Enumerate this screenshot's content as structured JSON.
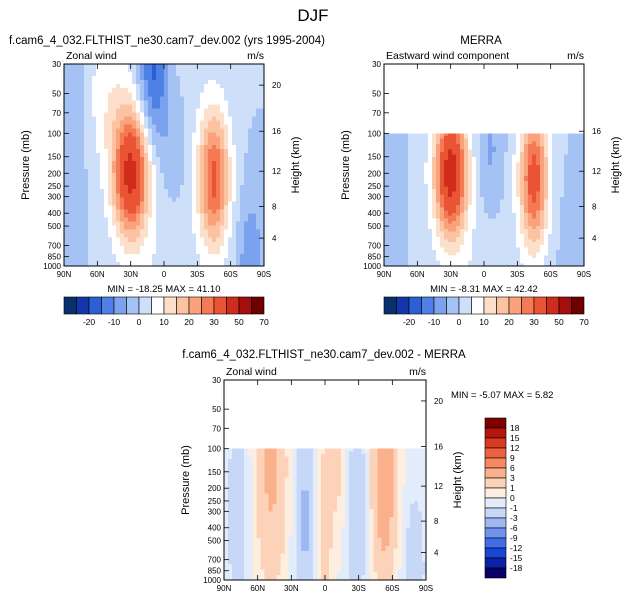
{
  "page": {
    "title": "DJF",
    "top_left_title": "f.cam6_4_032.FLTHIST_ne30.cam7_dev.002 (yrs 1995-2004)",
    "top_right_title": "MERRA",
    "bottom_title": "f.cam6_4_032.FLTHIST_ne30.cam7_dev.002 - MERRA"
  },
  "colors": {
    "full_scale": [
      "#08306b",
      "#1337a8",
      "#2b5fd6",
      "#4f80e6",
      "#7aa2ee",
      "#a4c2f4",
      "#cddff9",
      "#ffffff",
      "#fde0cc",
      "#fcc3a3",
      "#f9a27b",
      "#f47a55",
      "#e85434",
      "#cf2c1c",
      "#a30f0f",
      "#6e0000"
    ],
    "diff_scale": [
      "#08006b",
      "#0b21a8",
      "#1a46d8",
      "#3f6ee6",
      "#6f94ee",
      "#9db8f4",
      "#c6d7f8",
      "#e3ecfb",
      "#fdeee0",
      "#fcd3b8",
      "#f9b08b",
      "#f48962",
      "#ec6140",
      "#d8391f",
      "#b4150f",
      "#800000"
    ]
  },
  "chart_data": [
    {
      "name": "model",
      "type": "heatmap",
      "left_label": "Zonal wind",
      "right_label": "m/s",
      "ylabel": "Pressure (mb)",
      "y2label": "Height (km)",
      "x_ticks": [
        "90N",
        "60N",
        "30N",
        "0",
        "30S",
        "60S",
        "90S"
      ],
      "y_ticks": [
        "30",
        "50",
        "70",
        "100",
        "150",
        "200",
        "250",
        "300",
        "400",
        "500",
        "700",
        "850",
        "1000"
      ],
      "y2_ticks": [
        "20",
        "16",
        "12",
        "8",
        "4"
      ],
      "stats": "MIN = -18.25   MAX = 41.10",
      "colorbar_labels": [
        "-20",
        "-10",
        "0",
        "10",
        "20",
        "30",
        "50",
        "70"
      ],
      "jets": [
        {
          "lat": 30,
          "pressure": 200,
          "max": 41.1
        },
        {
          "lat": -45,
          "pressure": 200,
          "max": 30
        }
      ],
      "easterly_min": {
        "lat": 10,
        "pressure": 30,
        "value": -18.25
      }
    },
    {
      "name": "merra",
      "type": "heatmap",
      "left_label": "Eastward wind component",
      "right_label": "m/s",
      "ylabel": "Pressure (mb)",
      "y2label": "Height (km)",
      "x_ticks": [
        "90N",
        "60N",
        "30N",
        "0",
        "30S",
        "60S",
        "90S"
      ],
      "y_ticks": [
        "30",
        "50",
        "70",
        "100",
        "150",
        "200",
        "250",
        "300",
        "400",
        "500",
        "700",
        "850",
        "1000"
      ],
      "y2_ticks": [
        "16",
        "12",
        "8",
        "4"
      ],
      "stats": "MIN = -8.31   MAX = 42.42",
      "colorbar_labels": [
        "-20",
        "-10",
        "0",
        "10",
        "20",
        "30",
        "50",
        "70"
      ],
      "data_top_pressure": 100,
      "jets": [
        {
          "lat": 30,
          "pressure": 200,
          "max": 42.42
        },
        {
          "lat": -45,
          "pressure": 200,
          "max": 32
        }
      ]
    },
    {
      "name": "difference",
      "type": "heatmap",
      "left_label": "Zonal wind",
      "right_label": "m/s",
      "ylabel": "Pressure (mb)",
      "y2label": "Height (km)",
      "x_ticks": [
        "90N",
        "60N",
        "30N",
        "0",
        "30S",
        "60S",
        "90S"
      ],
      "y_ticks": [
        "30",
        "50",
        "70",
        "100",
        "150",
        "200",
        "250",
        "300",
        "400",
        "500",
        "700",
        "850",
        "1000"
      ],
      "y2_ticks": [
        "20",
        "16",
        "12",
        "8",
        "4"
      ],
      "stats": "MIN = -5.07   MAX =   5.82",
      "colorbar_labels": [
        "18",
        "15",
        "12",
        "9",
        "6",
        "3",
        "1",
        "0",
        "-1",
        "-3",
        "-6",
        "-9",
        "-12",
        "-15",
        "-18"
      ],
      "data_top_pressure": 100
    }
  ]
}
